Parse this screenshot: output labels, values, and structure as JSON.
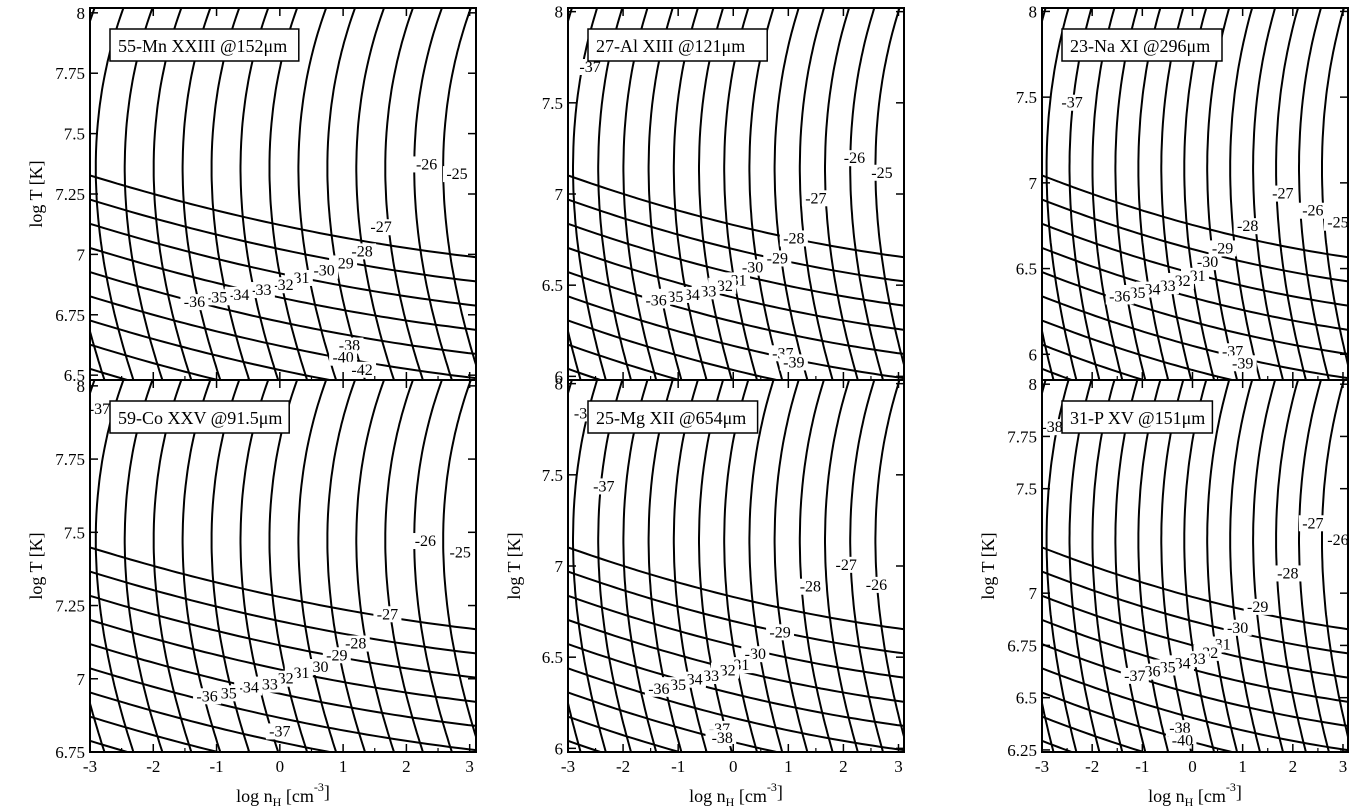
{
  "chart_data": [
    {
      "type": "line",
      "title": "55-Mn XXIII @152μm",
      "xlabel": "",
      "ylabel": "log T [K]",
      "xlim": [
        -3,
        3.1
      ],
      "ylim": [
        6.48,
        8.02
      ],
      "xticks": [
        "",
        "",
        "",
        "",
        "",
        "",
        ""
      ],
      "yticks": [
        {
          "v": 6.5,
          "label": "6.5"
        },
        {
          "v": 6.75,
          "label": "6.75"
        },
        {
          "v": 7,
          "label": "7"
        },
        {
          "v": 7.25,
          "label": "7.25"
        },
        {
          "v": 7.5,
          "label": "7.5"
        },
        {
          "v": 7.75,
          "label": "7.75"
        },
        {
          "v": 8,
          "label": "8"
        }
      ],
      "contour_labels": [
        {
          "text": "-26",
          "x": 2.32,
          "y": 7.36
        },
        {
          "text": "-25",
          "x": 2.8,
          "y": 7.32
        },
        {
          "text": "-27",
          "x": 1.6,
          "y": 7.1
        },
        {
          "text": "-28",
          "x": 1.3,
          "y": 7.0
        },
        {
          "text": "-29",
          "x": 1.0,
          "y": 6.95
        },
        {
          "text": "-30",
          "x": 0.7,
          "y": 6.92
        },
        {
          "text": "-31",
          "x": 0.3,
          "y": 6.89
        },
        {
          "text": "-32",
          "x": 0.05,
          "y": 6.86
        },
        {
          "text": "-33",
          "x": -0.3,
          "y": 6.84
        },
        {
          "text": "-34",
          "x": -0.65,
          "y": 6.82
        },
        {
          "text": "-35",
          "x": -1.0,
          "y": 6.81
        },
        {
          "text": "-36",
          "x": -1.35,
          "y": 6.79
        },
        {
          "text": "-38",
          "x": 1.1,
          "y": 6.61
        },
        {
          "text": "-40",
          "x": 1.0,
          "y": 6.56
        },
        {
          "text": "-42",
          "x": 1.3,
          "y": 6.51
        }
      ]
    },
    {
      "type": "line",
      "title": "27-Al XIII @121μm",
      "xlabel": "",
      "ylabel": "",
      "xlim": [
        -3,
        3.1
      ],
      "ylim": [
        5.98,
        8.02
      ],
      "xticks": [
        "",
        "",
        "",
        "",
        "",
        "",
        ""
      ],
      "yticks": [
        {
          "v": 6,
          "label": "6"
        },
        {
          "v": 6.5,
          "label": "6.5"
        },
        {
          "v": 7,
          "label": "7"
        },
        {
          "v": 7.5,
          "label": "7.5"
        },
        {
          "v": 8,
          "label": "8"
        }
      ],
      "contour_labels": [
        {
          "text": "-37",
          "x": -2.6,
          "y": 7.68
        },
        {
          "text": "-26",
          "x": 2.2,
          "y": 7.18
        },
        {
          "text": "-25",
          "x": 2.7,
          "y": 7.1
        },
        {
          "text": "-27",
          "x": 1.5,
          "y": 6.96
        },
        {
          "text": "-28",
          "x": 1.1,
          "y": 6.74
        },
        {
          "text": "-29",
          "x": 0.8,
          "y": 6.63
        },
        {
          "text": "-30",
          "x": 0.35,
          "y": 6.58
        },
        {
          "text": "-31",
          "x": 0.05,
          "y": 6.51
        },
        {
          "text": "-32",
          "x": -0.2,
          "y": 6.48
        },
        {
          "text": "-33",
          "x": -0.5,
          "y": 6.45
        },
        {
          "text": "-34",
          "x": -0.8,
          "y": 6.43
        },
        {
          "text": "-35",
          "x": -1.1,
          "y": 6.42
        },
        {
          "text": "-36",
          "x": -1.4,
          "y": 6.4
        },
        {
          "text": "-37",
          "x": 0.9,
          "y": 6.11
        },
        {
          "text": "-39",
          "x": 1.1,
          "y": 6.06
        }
      ]
    },
    {
      "type": "line",
      "title": "23-Na XI @296μm",
      "xlabel": "",
      "ylabel": "",
      "xlim": [
        -3,
        3.1
      ],
      "ylim": [
        5.85,
        8.02
      ],
      "xticks": [
        "",
        "",
        "",
        "",
        "",
        "",
        ""
      ],
      "yticks": [
        {
          "v": 6,
          "label": "6"
        },
        {
          "v": 6.5,
          "label": "6.5"
        },
        {
          "v": 7,
          "label": "7"
        },
        {
          "v": 7.5,
          "label": "7.5"
        },
        {
          "v": 8,
          "label": "8"
        }
      ],
      "contour_labels": [
        {
          "text": "-37",
          "x": -2.4,
          "y": 7.45
        },
        {
          "text": "-27",
          "x": 1.8,
          "y": 6.92
        },
        {
          "text": "-26",
          "x": 2.4,
          "y": 6.82
        },
        {
          "text": "-25",
          "x": 2.9,
          "y": 6.75
        },
        {
          "text": "-28",
          "x": 1.1,
          "y": 6.73
        },
        {
          "text": "-29",
          "x": 0.6,
          "y": 6.6
        },
        {
          "text": "-30",
          "x": 0.3,
          "y": 6.52
        },
        {
          "text": "-31",
          "x": 0.05,
          "y": 6.44
        },
        {
          "text": "-32",
          "x": -0.25,
          "y": 6.41
        },
        {
          "text": "-33",
          "x": -0.55,
          "y": 6.38
        },
        {
          "text": "-34",
          "x": -0.85,
          "y": 6.36
        },
        {
          "text": "-35",
          "x": -1.15,
          "y": 6.34
        },
        {
          "text": "-36",
          "x": -1.45,
          "y": 6.32
        },
        {
          "text": "-37",
          "x": 0.8,
          "y": 6.0
        },
        {
          "text": "-39",
          "x": 1.0,
          "y": 5.93
        }
      ]
    },
    {
      "type": "line",
      "title": "59-Co XXV @91.5μm",
      "xlabel": "log nH [cm-3]",
      "ylabel": "log T [K]",
      "xlim": [
        -3,
        3.1
      ],
      "ylim": [
        6.75,
        8.02
      ],
      "xticks": [
        "-3",
        "-2",
        "-1",
        "0",
        "1",
        "2",
        "3"
      ],
      "yticks": [
        {
          "v": 6.75,
          "label": "6.75"
        },
        {
          "v": 7,
          "label": "7"
        },
        {
          "v": 7.25,
          "label": "7.25"
        },
        {
          "v": 7.5,
          "label": "7.5"
        },
        {
          "v": 7.75,
          "label": "7.75"
        },
        {
          "v": 8,
          "label": "8"
        }
      ],
      "contour_labels": [
        {
          "text": "-37",
          "x": -2.85,
          "y": 7.91
        },
        {
          "text": "-26",
          "x": 2.3,
          "y": 7.46
        },
        {
          "text": "-25",
          "x": 2.85,
          "y": 7.42
        },
        {
          "text": "-27",
          "x": 1.7,
          "y": 7.21
        },
        {
          "text": "-28",
          "x": 1.2,
          "y": 7.11
        },
        {
          "text": "-29",
          "x": 0.9,
          "y": 7.07
        },
        {
          "text": "-30",
          "x": 0.6,
          "y": 7.03
        },
        {
          "text": "-31",
          "x": 0.3,
          "y": 7.01
        },
        {
          "text": "-32",
          "x": 0.05,
          "y": 6.99
        },
        {
          "text": "-33",
          "x": -0.2,
          "y": 6.97
        },
        {
          "text": "-34",
          "x": -0.5,
          "y": 6.96
        },
        {
          "text": "-35",
          "x": -0.85,
          "y": 6.94
        },
        {
          "text": "-36",
          "x": -1.15,
          "y": 6.93
        },
        {
          "text": "-37",
          "x": 0.0,
          "y": 6.81
        }
      ]
    },
    {
      "type": "line",
      "title": "25-Mg XII @654μm",
      "xlabel": "log nH [cm-3]",
      "ylabel": "log T [K]",
      "xlim": [
        -3,
        3.1
      ],
      "ylim": [
        5.98,
        8.02
      ],
      "xticks": [
        "-3",
        "-2",
        "-1",
        "0",
        "1",
        "2",
        "3"
      ],
      "yticks": [
        {
          "v": 6,
          "label": "6"
        },
        {
          "v": 6.5,
          "label": "6.5"
        },
        {
          "v": 7,
          "label": "7"
        },
        {
          "v": 7.5,
          "label": "7.5"
        },
        {
          "v": 8,
          "label": "8"
        }
      ],
      "contour_labels": [
        {
          "text": "-38",
          "x": -2.7,
          "y": 7.82
        },
        {
          "text": "-37",
          "x": -2.35,
          "y": 7.42
        },
        {
          "text": "-27",
          "x": 2.05,
          "y": 6.99
        },
        {
          "text": "-26",
          "x": 2.6,
          "y": 6.88
        },
        {
          "text": "-28",
          "x": 1.4,
          "y": 6.87
        },
        {
          "text": "-29",
          "x": 0.85,
          "y": 6.62
        },
        {
          "text": "-30",
          "x": 0.4,
          "y": 6.5
        },
        {
          "text": "-31",
          "x": 0.1,
          "y": 6.44
        },
        {
          "text": "-32",
          "x": -0.15,
          "y": 6.41
        },
        {
          "text": "-33",
          "x": -0.45,
          "y": 6.38
        },
        {
          "text": "-34",
          "x": -0.75,
          "y": 6.36
        },
        {
          "text": "-35",
          "x": -1.05,
          "y": 6.33
        },
        {
          "text": "-36",
          "x": -1.35,
          "y": 6.31
        },
        {
          "text": "-37",
          "x": -0.25,
          "y": 6.09
        },
        {
          "text": "-38",
          "x": -0.2,
          "y": 6.04
        }
      ]
    },
    {
      "type": "line",
      "title": "31-P XV @151μm",
      "xlabel": "log nH [cm-3]",
      "ylabel": "log T [K]",
      "xlim": [
        -3,
        3.1
      ],
      "ylim": [
        6.24,
        8.02
      ],
      "xticks": [
        "-3",
        "-2",
        "-1",
        "0",
        "1",
        "2",
        "3"
      ],
      "yticks": [
        {
          "v": 6.25,
          "label": "6.25"
        },
        {
          "v": 6.5,
          "label": "6.5"
        },
        {
          "v": 6.75,
          "label": "6.75"
        },
        {
          "v": 7,
          "label": "7"
        },
        {
          "v": 7.5,
          "label": "7.5"
        },
        {
          "v": 7.75,
          "label": "7.75"
        },
        {
          "v": 8,
          "label": "8"
        }
      ],
      "contour_labels": [
        {
          "text": "-38",
          "x": -2.8,
          "y": 7.78
        },
        {
          "text": "-27",
          "x": 2.4,
          "y": 7.32
        },
        {
          "text": "-26",
          "x": 2.9,
          "y": 7.24
        },
        {
          "text": "-28",
          "x": 1.9,
          "y": 7.08
        },
        {
          "text": "-29",
          "x": 1.3,
          "y": 6.92
        },
        {
          "text": "-30",
          "x": 0.9,
          "y": 6.82
        },
        {
          "text": "-31",
          "x": 0.55,
          "y": 6.74
        },
        {
          "text": "-32",
          "x": 0.3,
          "y": 6.7
        },
        {
          "text": "-33",
          "x": 0.05,
          "y": 6.67
        },
        {
          "text": "-34",
          "x": -0.25,
          "y": 6.65
        },
        {
          "text": "-35",
          "x": -0.55,
          "y": 6.63
        },
        {
          "text": "-36",
          "x": -0.85,
          "y": 6.61
        },
        {
          "text": "-37",
          "x": -1.15,
          "y": 6.59
        },
        {
          "text": "-38",
          "x": -0.25,
          "y": 6.34
        },
        {
          "text": "-40",
          "x": -0.2,
          "y": 6.28
        }
      ]
    }
  ]
}
